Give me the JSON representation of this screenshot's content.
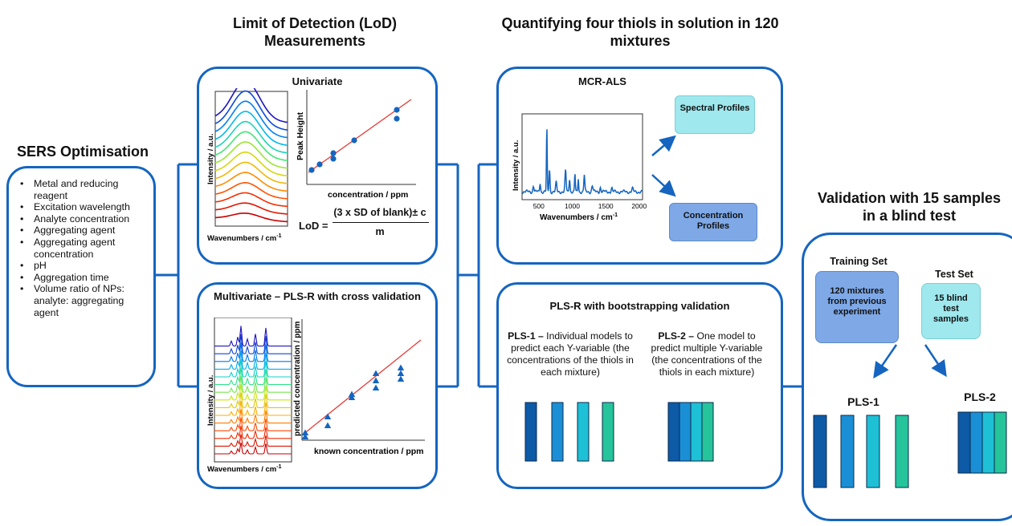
{
  "sers": {
    "title": "SERS Optimisation",
    "items": [
      "Metal and reducing reagent",
      "Excitation wavelength",
      "Analyte concentration",
      "Aggregating agent",
      "Aggregating agent concentration",
      "pH",
      "Aggregation time",
      "Volume ratio of NPs: analyte: aggregating agent"
    ]
  },
  "lod": {
    "title": "Limit of Detection (LoD) Measurements",
    "univariate": {
      "title": "Univariate",
      "spectra_ylabel": "Intensity / a.u.",
      "spectra_xlabel": "Wavenumbers / cm",
      "spectra_xlabel_sup": "-1",
      "calib_ylabel": "Peak Height",
      "calib_xlabel": "concentration / ppm",
      "formula_lhs": "LoD =",
      "formula_num": "(3 x SD of blank)± c",
      "formula_den": "m"
    },
    "multivariate": {
      "title": "Multivariate – PLS-R with cross validation",
      "spectra_ylabel": "Intensity / a.u.",
      "spectra_xlabel": "Wavenumbers / cm",
      "spectra_xlabel_sup": "-1",
      "calib_ylabel": "predicted concentration / ppm",
      "calib_xlabel": "known concentration / ppm"
    }
  },
  "quant": {
    "title": "Quantifying four thiols in solution in 120 mixtures",
    "mcr": {
      "title": "MCR-ALS",
      "ylabel": "Intensity / a.u.",
      "xlabel": "Wavenumbers / cm",
      "xlabel_sup": "-1",
      "xticks": [
        "500",
        "1000",
        "1500",
        "2000"
      ],
      "spectral_profiles": "Spectral Profiles",
      "concentration_profiles": "Concentration Profiles"
    },
    "plsr": {
      "title": "PLS-R with bootstrapping validation",
      "pls1_bold": "PLS-1 –",
      "pls1_text": " Individual models to predict each Y-variable (the concentrations of the thiols in each mixture)",
      "pls2_bold": "PLS-2 –",
      "pls2_text": " One model to predict multiple Y-variable (the concentrations of the thiols in each mixture)"
    }
  },
  "validation": {
    "title": "Validation with 15 samples in a blind test",
    "training_set_label": "Training Set",
    "test_set_label": "Test Set",
    "training_set_text": "120 mixtures from previous experiment",
    "test_set_text": "15 blind test samples",
    "pls1_label": "PLS-1",
    "pls2_label": "PLS-2"
  },
  "colors": {
    "border": "#1565c0",
    "bar1": "#0d5aa7",
    "bar2": "#1a8fd6",
    "bar3": "#1ec0d6",
    "bar4": "#25c49a",
    "spectral_box": "#9ee8ee",
    "conc_box": "#7ea8e6",
    "fit_line": "#e53935",
    "points": "#1565c0"
  }
}
